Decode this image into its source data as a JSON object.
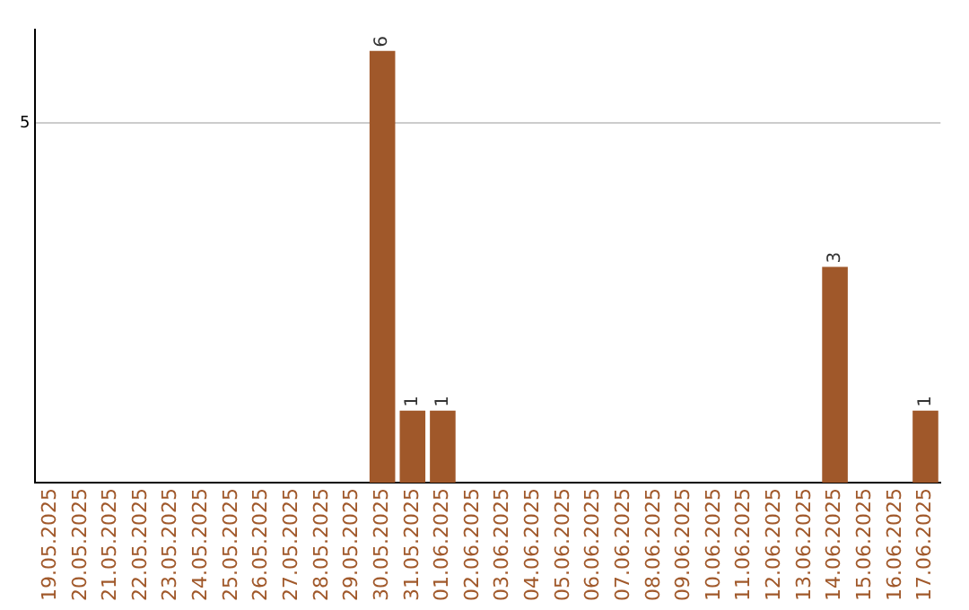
{
  "chart_data": {
    "type": "bar",
    "categories": [
      "19.05.2025",
      "20.05.2025",
      "21.05.2025",
      "22.05.2025",
      "23.05.2025",
      "24.05.2025",
      "25.05.2025",
      "26.05.2025",
      "27.05.2025",
      "28.05.2025",
      "29.05.2025",
      "30.05.2025",
      "31.05.2025",
      "01.06.2025",
      "02.06.2025",
      "03.06.2025",
      "04.06.2025",
      "05.06.2025",
      "06.06.2025",
      "07.06.2025",
      "08.06.2025",
      "09.06.2025",
      "10.06.2025",
      "11.06.2025",
      "12.06.2025",
      "13.06.2025",
      "14.06.2025",
      "15.06.2025",
      "16.06.2025",
      "17.06.2025"
    ],
    "values": [
      0,
      0,
      0,
      0,
      0,
      0,
      0,
      0,
      0,
      0,
      0,
      6,
      1,
      1,
      0,
      0,
      0,
      0,
      0,
      0,
      0,
      0,
      0,
      0,
      0,
      0,
      3,
      0,
      0,
      1
    ],
    "value_labels": [
      null,
      null,
      null,
      null,
      null,
      null,
      null,
      null,
      null,
      null,
      null,
      "6",
      "1",
      "1",
      null,
      null,
      null,
      null,
      null,
      null,
      null,
      null,
      null,
      null,
      null,
      null,
      "3",
      null,
      null,
      "1"
    ],
    "color": "#a0582a",
    "ylim": [
      0,
      6.3
    ],
    "yticks": [
      5
    ],
    "grid": "y",
    "legend": false
  }
}
